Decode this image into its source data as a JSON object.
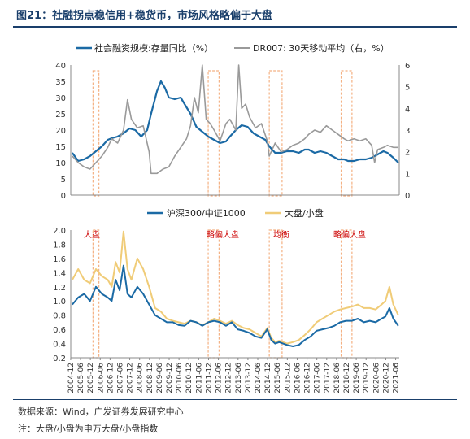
{
  "header": {
    "title": "图21：社融拐点稳信用+稳货币，市场风格略偏于大盘"
  },
  "footer": {
    "source": "数据来源：Wind，广发证券发展研究中心",
    "note": "注：大盘/小盘为申万大盘/小盘指数"
  },
  "colors": {
    "blue": "#1b6aa5",
    "gray": "#9a9a9a",
    "gold": "#f0cc78",
    "red": "#cc0000",
    "band": "#f4b183"
  },
  "chart_data": [
    {
      "type": "line",
      "title": "",
      "legend_position": "top",
      "x_ticks": [
        "2004-12",
        "2005-06",
        "2005-12",
        "2006-06",
        "2006-12",
        "2007-06",
        "2007-12",
        "2008-06",
        "2008-12",
        "2009-06",
        "2009-12",
        "2010-06",
        "2010-12",
        "2011-06",
        "2011-12",
        "2012-06",
        "2012-12",
        "2013-06",
        "2013-12",
        "2014-06",
        "2014-12",
        "2015-06",
        "2015-12",
        "2016-06",
        "2016-12",
        "2017-06",
        "2017-12",
        "2018-06",
        "2018-12",
        "2019-06",
        "2019-12",
        "2020-06",
        "2020-12",
        "2021-06"
      ],
      "ylim_left": [
        0,
        40
      ],
      "ylim_right": [
        0,
        6
      ],
      "yticks_left": [
        0,
        5,
        10,
        15,
        20,
        25,
        30,
        35,
        40
      ],
      "yticks_right": [
        0,
        1,
        2,
        3,
        4,
        5,
        6
      ],
      "series": [
        {
          "name": "社会融资规模:存量同比（%）",
          "axis": "left",
          "color": "#1b6aa5",
          "x": [
            2005.0,
            2005.3,
            2005.6,
            2005.9,
            2006.2,
            2006.5,
            2006.8,
            2007.0,
            2007.3,
            2007.6,
            2007.9,
            2008.2,
            2008.5,
            2008.8,
            2009.0,
            2009.3,
            2009.5,
            2009.7,
            2009.9,
            2010.2,
            2010.5,
            2010.8,
            2011.0,
            2011.3,
            2011.6,
            2011.9,
            2012.2,
            2012.5,
            2012.8,
            2013.0,
            2013.3,
            2013.6,
            2013.9,
            2014.2,
            2014.5,
            2014.8,
            2015.0,
            2015.3,
            2015.6,
            2015.9,
            2016.2,
            2016.5,
            2016.8,
            2017.0,
            2017.3,
            2017.6,
            2017.9,
            2018.2,
            2018.5,
            2018.8,
            2019.0,
            2019.3,
            2019.6,
            2019.9,
            2020.2,
            2020.5,
            2020.8,
            2021.0,
            2021.3,
            2021.55
          ],
          "y": [
            13,
            10.5,
            11,
            12,
            13.5,
            15,
            17,
            17.5,
            18,
            19,
            20.5,
            20,
            18,
            20,
            25,
            32,
            35,
            33,
            30,
            29.5,
            30,
            27,
            25,
            21,
            19.5,
            18,
            17,
            16,
            16.5,
            18,
            20,
            21.5,
            21,
            19,
            18,
            17,
            15,
            13,
            13,
            13.5,
            13.5,
            13,
            14,
            14,
            13,
            13.5,
            13,
            12,
            11,
            11,
            10.5,
            10.5,
            11,
            11,
            11.5,
            12.5,
            13.5,
            13,
            11.5,
            10
          ]
        },
        {
          "name": "DR007: 30天移动平均（右，%）",
          "axis": "right",
          "color": "#9a9a9a",
          "x": [
            2005.0,
            2005.3,
            2005.6,
            2005.9,
            2006.2,
            2006.5,
            2006.8,
            2007.0,
            2007.3,
            2007.6,
            2007.8,
            2008.0,
            2008.3,
            2008.6,
            2008.9,
            2009.0,
            2009.3,
            2009.6,
            2009.9,
            2010.2,
            2010.5,
            2010.8,
            2011.0,
            2011.2,
            2011.4,
            2011.6,
            2011.8,
            2012.0,
            2012.2,
            2012.5,
            2012.8,
            2013.0,
            2013.3,
            2013.45,
            2013.6,
            2013.8,
            2014.0,
            2014.3,
            2014.6,
            2014.9,
            2015.0,
            2015.3,
            2015.6,
            2015.9,
            2016.2,
            2016.5,
            2016.8,
            2017.0,
            2017.3,
            2017.6,
            2017.9,
            2018.2,
            2018.5,
            2018.8,
            2019.0,
            2019.3,
            2019.6,
            2019.9,
            2020.2,
            2020.35,
            2020.5,
            2020.8,
            2021.0,
            2021.3,
            2021.55
          ],
          "y": [
            1.8,
            1.5,
            1.3,
            1.2,
            1.5,
            1.8,
            2.2,
            2.6,
            2.4,
            3.0,
            4.4,
            3.5,
            3.1,
            3.2,
            2.0,
            1.0,
            1.0,
            1.2,
            1.3,
            1.8,
            2.2,
            2.6,
            3.2,
            4.5,
            3.8,
            6.0,
            3.5,
            3.3,
            3.0,
            2.5,
            3.3,
            3.5,
            3.0,
            6.0,
            4.0,
            4.2,
            3.6,
            3.1,
            3.3,
            2.5,
            1.8,
            2.4,
            2.0,
            2.1,
            2.3,
            2.4,
            2.6,
            2.8,
            3.0,
            2.9,
            3.2,
            3.0,
            2.8,
            2.6,
            2.5,
            2.6,
            2.5,
            2.6,
            2.3,
            1.5,
            2.1,
            2.2,
            2.3,
            2.2,
            2.2
          ]
        }
      ]
    },
    {
      "type": "line",
      "title": "",
      "legend_position": "top",
      "x_ticks": [
        "2004-12",
        "2005-06",
        "2005-12",
        "2006-06",
        "2006-12",
        "2007-06",
        "2007-12",
        "2008-06",
        "2008-12",
        "2009-06",
        "2009-12",
        "2010-06",
        "2010-12",
        "2011-06",
        "2011-12",
        "2012-06",
        "2012-12",
        "2013-06",
        "2013-12",
        "2014-06",
        "2014-12",
        "2015-06",
        "2015-12",
        "2016-06",
        "2016-12",
        "2017-06",
        "2017-12",
        "2018-06",
        "2018-12",
        "2019-06",
        "2019-12",
        "2020-06",
        "2020-12",
        "2021-06"
      ],
      "ylim": [
        0.2,
        2.0
      ],
      "yticks": [
        0.2,
        0.4,
        0.6,
        0.8,
        1.0,
        1.2,
        1.4,
        1.6,
        1.8,
        2.0
      ],
      "annotations": [
        "大盘",
        "略偏大盘",
        "均衡",
        "略偏大盘"
      ],
      "series": [
        {
          "name": "沪深300/中证1000",
          "color": "#1b6aa5",
          "x": [
            2005.0,
            2005.3,
            2005.6,
            2005.9,
            2006.2,
            2006.5,
            2006.8,
            2007.0,
            2007.2,
            2007.4,
            2007.6,
            2007.8,
            2008.0,
            2008.3,
            2008.6,
            2008.9,
            2009.2,
            2009.5,
            2009.8,
            2010.1,
            2010.4,
            2010.7,
            2011.0,
            2011.3,
            2011.6,
            2011.9,
            2012.2,
            2012.5,
            2012.8,
            2013.1,
            2013.4,
            2013.7,
            2014.0,
            2014.3,
            2014.6,
            2014.9,
            2015.1,
            2015.3,
            2015.5,
            2015.7,
            2015.9,
            2016.2,
            2016.5,
            2016.8,
            2017.1,
            2017.4,
            2017.7,
            2018.0,
            2018.3,
            2018.6,
            2018.9,
            2019.2,
            2019.5,
            2019.8,
            2020.1,
            2020.4,
            2020.7,
            2020.9,
            2021.1,
            2021.3,
            2021.55
          ],
          "y": [
            0.95,
            1.05,
            1.1,
            1.0,
            1.2,
            1.1,
            1.05,
            1.0,
            1.3,
            1.15,
            1.5,
            1.1,
            1.05,
            1.2,
            1.1,
            0.95,
            0.8,
            0.75,
            0.7,
            0.7,
            0.66,
            0.65,
            0.72,
            0.7,
            0.65,
            0.7,
            0.72,
            0.7,
            0.65,
            0.7,
            0.6,
            0.58,
            0.55,
            0.5,
            0.48,
            0.6,
            0.45,
            0.4,
            0.42,
            0.4,
            0.38,
            0.36,
            0.38,
            0.45,
            0.5,
            0.58,
            0.6,
            0.62,
            0.65,
            0.7,
            0.72,
            0.72,
            0.75,
            0.7,
            0.72,
            0.7,
            0.75,
            0.78,
            0.9,
            0.75,
            0.65
          ]
        },
        {
          "name": "大盘/小盘",
          "color": "#f0cc78",
          "x": [
            2005.0,
            2005.3,
            2005.6,
            2005.9,
            2006.2,
            2006.5,
            2006.8,
            2007.0,
            2007.2,
            2007.4,
            2007.6,
            2007.8,
            2008.0,
            2008.3,
            2008.6,
            2008.9,
            2009.2,
            2009.5,
            2009.8,
            2010.1,
            2010.4,
            2010.7,
            2011.0,
            2011.3,
            2011.6,
            2011.9,
            2012.2,
            2012.5,
            2012.8,
            2013.1,
            2013.4,
            2013.7,
            2014.0,
            2014.3,
            2014.6,
            2014.9,
            2015.1,
            2015.3,
            2015.5,
            2015.7,
            2015.9,
            2016.2,
            2016.5,
            2016.8,
            2017.1,
            2017.4,
            2017.7,
            2018.0,
            2018.3,
            2018.6,
            2018.9,
            2019.2,
            2019.5,
            2019.8,
            2020.1,
            2020.4,
            2020.7,
            2020.9,
            2021.1,
            2021.3,
            2021.55
          ],
          "y": [
            1.3,
            1.45,
            1.3,
            1.25,
            1.45,
            1.35,
            1.3,
            1.2,
            1.55,
            1.4,
            1.98,
            1.45,
            1.3,
            1.6,
            1.45,
            1.2,
            0.9,
            0.85,
            0.75,
            0.72,
            0.7,
            0.68,
            0.72,
            0.7,
            0.66,
            0.7,
            0.75,
            0.72,
            0.68,
            0.72,
            0.66,
            0.62,
            0.6,
            0.55,
            0.5,
            0.62,
            0.48,
            0.42,
            0.44,
            0.42,
            0.4,
            0.42,
            0.45,
            0.52,
            0.6,
            0.7,
            0.75,
            0.8,
            0.85,
            0.88,
            0.9,
            0.92,
            0.95,
            0.9,
            0.9,
            0.88,
            0.95,
            1.0,
            1.2,
            0.95,
            0.8
          ]
        }
      ]
    }
  ]
}
